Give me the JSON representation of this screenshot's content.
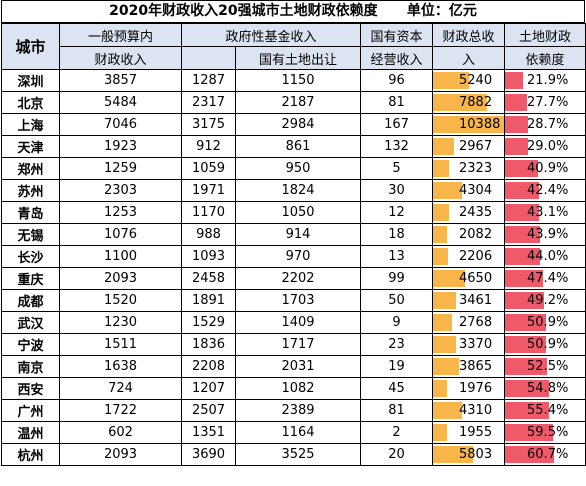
{
  "title": "2020年财政收入20强城市土地财政依赖度      单位：亿元",
  "headers": {
    "city": "城市",
    "general_budget_l1": "一般预算内",
    "general_budget_l2": "财政收入",
    "gov_fund": "政府性基金收入",
    "land_sale": "国有土地出让",
    "soe_l1": "国有资本",
    "soe_l2": "经营收入",
    "total_l1": "财政总收",
    "total_l2": "入",
    "dependency_l1": "土地财政",
    "dependency_l2": "依赖度"
  },
  "colors": {
    "total_bar": "#f8b64a",
    "ratio_bar": "#ef5a6a",
    "header_bg": "#dbe4f0"
  },
  "rows": [
    {
      "city": "深圳",
      "general_budget": "3857",
      "gov_fund": "1287",
      "land_sale": "1150",
      "soe": "96",
      "total": "5240",
      "total_fraction": 0.5,
      "dependency": "21.9%",
      "dependency_fraction": 0.219
    },
    {
      "city": "北京",
      "general_budget": "5484",
      "gov_fund": "2317",
      "land_sale": "2187",
      "soe": "81",
      "total": "7882",
      "total_fraction": 0.76,
      "dependency": "27.7%",
      "dependency_fraction": 0.277
    },
    {
      "city": "上海",
      "general_budget": "7046",
      "gov_fund": "3175",
      "land_sale": "2984",
      "soe": "167",
      "total": "10388",
      "total_fraction": 1.0,
      "dependency": "28.7%",
      "dependency_fraction": 0.287
    },
    {
      "city": "天津",
      "general_budget": "1923",
      "gov_fund": "912",
      "land_sale": "861",
      "soe": "132",
      "total": "2967",
      "total_fraction": 0.29,
      "dependency": "29.0%",
      "dependency_fraction": 0.29
    },
    {
      "city": "郑州",
      "general_budget": "1259",
      "gov_fund": "1059",
      "land_sale": "950",
      "soe": "5",
      "total": "2323",
      "total_fraction": 0.22,
      "dependency": "40.9%",
      "dependency_fraction": 0.409
    },
    {
      "city": "苏州",
      "general_budget": "2303",
      "gov_fund": "1971",
      "land_sale": "1824",
      "soe": "30",
      "total": "4304",
      "total_fraction": 0.41,
      "dependency": "42.4%",
      "dependency_fraction": 0.424
    },
    {
      "city": "青岛",
      "general_budget": "1253",
      "gov_fund": "1170",
      "land_sale": "1050",
      "soe": "12",
      "total": "2435",
      "total_fraction": 0.23,
      "dependency": "43.1%",
      "dependency_fraction": 0.431
    },
    {
      "city": "无锡",
      "general_budget": "1076",
      "gov_fund": "988",
      "land_sale": "914",
      "soe": "18",
      "total": "2082",
      "total_fraction": 0.2,
      "dependency": "43.9%",
      "dependency_fraction": 0.439
    },
    {
      "city": "长沙",
      "general_budget": "1100",
      "gov_fund": "1093",
      "land_sale": "970",
      "soe": "13",
      "total": "2206",
      "total_fraction": 0.21,
      "dependency": "44.0%",
      "dependency_fraction": 0.44
    },
    {
      "city": "重庆",
      "general_budget": "2093",
      "gov_fund": "2458",
      "land_sale": "2202",
      "soe": "99",
      "total": "4650",
      "total_fraction": 0.45,
      "dependency": "47.4%",
      "dependency_fraction": 0.474
    },
    {
      "city": "成都",
      "general_budget": "1520",
      "gov_fund": "1891",
      "land_sale": "1703",
      "soe": "50",
      "total": "3461",
      "total_fraction": 0.33,
      "dependency": "49.2%",
      "dependency_fraction": 0.492
    },
    {
      "city": "武汉",
      "general_budget": "1230",
      "gov_fund": "1529",
      "land_sale": "1409",
      "soe": "9",
      "total": "2768",
      "total_fraction": 0.27,
      "dependency": "50.9%",
      "dependency_fraction": 0.509
    },
    {
      "city": "宁波",
      "general_budget": "1511",
      "gov_fund": "1836",
      "land_sale": "1717",
      "soe": "23",
      "total": "3370",
      "total_fraction": 0.32,
      "dependency": "50.9%",
      "dependency_fraction": 0.509
    },
    {
      "city": "南京",
      "general_budget": "1638",
      "gov_fund": "2208",
      "land_sale": "2031",
      "soe": "19",
      "total": "3865",
      "total_fraction": 0.37,
      "dependency": "52.5%",
      "dependency_fraction": 0.525
    },
    {
      "city": "西安",
      "general_budget": "724",
      "gov_fund": "1207",
      "land_sale": "1082",
      "soe": "45",
      "total": "1976",
      "total_fraction": 0.19,
      "dependency": "54.8%",
      "dependency_fraction": 0.548
    },
    {
      "city": "广州",
      "general_budget": "1722",
      "gov_fund": "2507",
      "land_sale": "2389",
      "soe": "81",
      "total": "4310",
      "total_fraction": 0.41,
      "dependency": "55.4%",
      "dependency_fraction": 0.554
    },
    {
      "city": "温州",
      "general_budget": "602",
      "gov_fund": "1351",
      "land_sale": "1164",
      "soe": "2",
      "total": "1955",
      "total_fraction": 0.19,
      "dependency": "59.5%",
      "dependency_fraction": 0.595
    },
    {
      "city": "杭州",
      "general_budget": "2093",
      "gov_fund": "3690",
      "land_sale": "3525",
      "soe": "20",
      "total": "5803",
      "total_fraction": 0.56,
      "dependency": "60.7%",
      "dependency_fraction": 0.607
    }
  ]
}
